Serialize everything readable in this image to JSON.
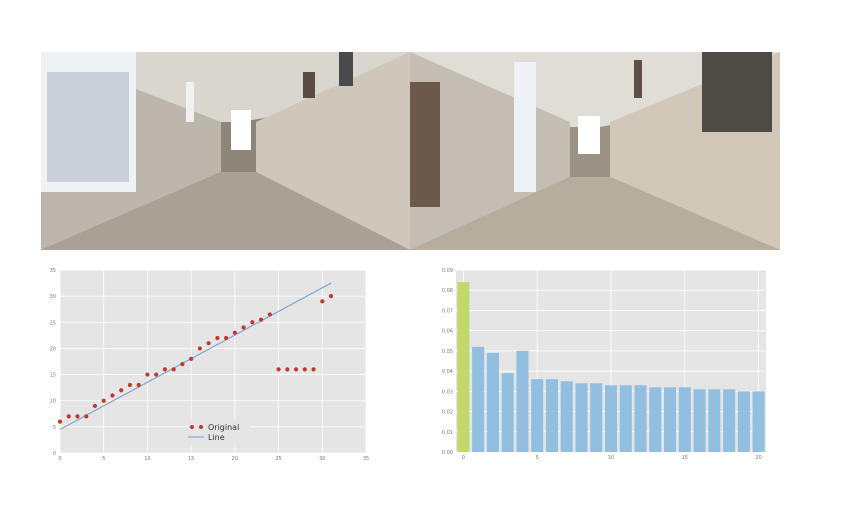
{
  "photos": [
    {
      "icon": "hallway-photo"
    },
    {
      "icon": "hallway-photo"
    }
  ],
  "colors": {
    "plot_bg": "#e5e5e5",
    "grid": "#ffffff",
    "points": "#c0392b",
    "line": "#7fa7d2",
    "bar": "#92bfe0",
    "bar_highlight": "#c1d86a"
  },
  "chart_data": [
    {
      "type": "scatter",
      "legend_position": "bottom-center",
      "grid": true,
      "xlim": [
        0,
        35
      ],
      "ylim": [
        0,
        35
      ],
      "x_ticks": [
        0,
        5,
        10,
        15,
        20,
        25,
        30,
        35
      ],
      "y_ticks": [
        0,
        5,
        10,
        15,
        20,
        25,
        30,
        35
      ],
      "x_tick_labels": [
        "0",
        "5",
        "10",
        "15",
        "20",
        "25",
        "30",
        "35"
      ],
      "y_tick_labels": [
        "0",
        "5",
        "10",
        "15",
        "20",
        "25",
        "30",
        "35"
      ],
      "series": [
        {
          "name": "Original",
          "kind": "points",
          "x": [
            0,
            1,
            2,
            3,
            4,
            5,
            6,
            7,
            8,
            9,
            10,
            11,
            12,
            13,
            14,
            15,
            16,
            17,
            18,
            19,
            20,
            21,
            22,
            23,
            24,
            25,
            26,
            27,
            28,
            29,
            30,
            31
          ],
          "y": [
            6,
            7,
            7,
            7,
            9,
            10,
            11,
            12,
            13,
            13,
            15,
            15,
            16,
            16,
            17,
            18,
            20,
            21,
            22,
            22,
            23,
            24,
            25,
            25.5,
            26.5,
            16,
            16,
            16,
            16,
            16,
            29,
            30
          ]
        },
        {
          "name": "Line",
          "kind": "line",
          "x": [
            0,
            31
          ],
          "y": [
            4.5,
            32.5
          ]
        }
      ]
    },
    {
      "type": "bar",
      "grid": true,
      "ylim": [
        0,
        0.09
      ],
      "y_ticks": [
        0,
        0.01,
        0.02,
        0.03,
        0.04,
        0.05,
        0.06,
        0.07,
        0.08,
        0.09
      ],
      "y_tick_labels": [
        "0.00",
        "0.01",
        "0.02",
        "0.03",
        "0.04",
        "0.05",
        "0.06",
        "0.07",
        "0.08",
        "0.09"
      ],
      "x_ticks": [
        0,
        5,
        10,
        15,
        20
      ],
      "x_tick_labels": [
        "0",
        "5",
        "10",
        "15",
        "20"
      ],
      "highlight_index": 0,
      "values": [
        0.084,
        0.052,
        0.049,
        0.039,
        0.05,
        0.036,
        0.036,
        0.035,
        0.034,
        0.034,
        0.033,
        0.033,
        0.033,
        0.032,
        0.032,
        0.032,
        0.031,
        0.031,
        0.031,
        0.03,
        0.03
      ]
    }
  ]
}
